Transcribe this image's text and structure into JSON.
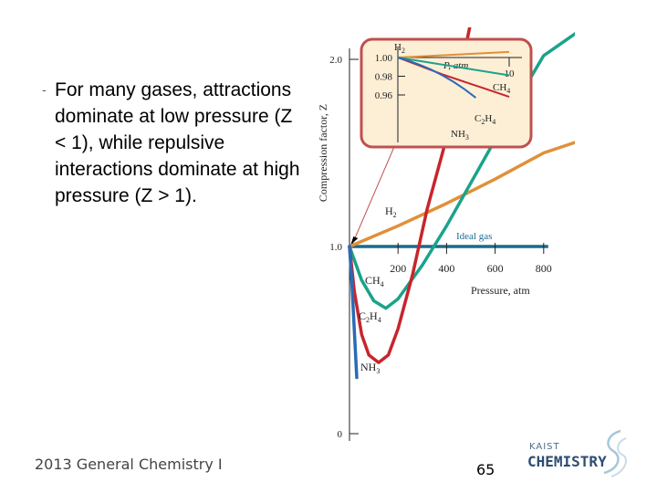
{
  "slide": {
    "bullet": "-",
    "body_text": "For many gases, attractions dominate at low pressure (Z < 1), while repulsive interactions dominate at high pressure  (Z > 1).",
    "footer": "2013 General Chemistry I",
    "page_number": "65",
    "logo": {
      "small_text": "KAIST",
      "big_text": "CHEMISTRY"
    }
  },
  "colors": {
    "H2": "#e0903a",
    "CH4": "#1aa38a",
    "C2H4": "#c8242c",
    "NH3": "#2a6bb5",
    "ideal": "#1a6b8c",
    "inset_border": "#c0504d",
    "inset_fill": "#fcefd6"
  },
  "chart_data": [
    {
      "type": "line",
      "xlabel": "Pressure, atm",
      "ylabel": "Compression factor, Z",
      "xlim": [
        0,
        800
      ],
      "ylim": [
        0,
        2.0
      ],
      "x_ticks": [
        "200",
        "400",
        "600",
        "800"
      ],
      "y_ticks": [
        "0",
        "1.0",
        "2.0"
      ],
      "reference_line": {
        "label": "Ideal gas",
        "y": 1.0
      },
      "series": [
        {
          "name": "H2",
          "label_main": "H",
          "label_sub": "2",
          "x": [
            0,
            200,
            400,
            600,
            800,
            1030
          ],
          "y": [
            1.0,
            1.11,
            1.23,
            1.36,
            1.5,
            1.6
          ]
        },
        {
          "name": "CH4",
          "label_main": "CH",
          "label_sub": "4",
          "x": [
            0,
            50,
            100,
            150,
            200,
            300,
            400,
            500,
            600,
            700,
            800,
            1000
          ],
          "y": [
            1.0,
            0.82,
            0.71,
            0.67,
            0.72,
            0.9,
            1.11,
            1.34,
            1.57,
            1.8,
            2.02,
            2.2
          ]
        },
        {
          "name": "C2H4",
          "label_main": "C",
          "label_sub": "2",
          "label_main2": "H",
          "label_sub2": "4",
          "x": [
            0,
            20,
            50,
            80,
            120,
            160,
            200,
            260,
            320,
            400,
            500
          ],
          "y": [
            1.0,
            0.76,
            0.53,
            0.42,
            0.38,
            0.42,
            0.56,
            0.85,
            1.2,
            1.58,
            2.2
          ]
        },
        {
          "name": "NH3",
          "label_main": "NH",
          "label_sub": "3",
          "x": [
            0,
            10,
            20,
            30
          ],
          "y": [
            1.0,
            0.8,
            0.55,
            0.3
          ]
        }
      ]
    },
    {
      "type": "line",
      "title": "P, atm",
      "xlim": [
        0,
        10
      ],
      "ylim": [
        0.95,
        1.0
      ],
      "x_ticks": [
        "10"
      ],
      "y_ticks": [
        "1.00",
        "0.98",
        "0.96"
      ],
      "series": [
        {
          "name": "H2",
          "x": [
            0,
            10
          ],
          "y": [
            1.0,
            1.006
          ]
        },
        {
          "name": "CH4",
          "x": [
            0,
            10
          ],
          "y": [
            1.0,
            0.981
          ]
        },
        {
          "name": "C2H4",
          "x": [
            0,
            2,
            4,
            6,
            8,
            10
          ],
          "y": [
            1.0,
            0.991,
            0.982,
            0.974,
            0.966,
            0.958
          ]
        },
        {
          "name": "NH3",
          "x": [
            0,
            1,
            2,
            3,
            4,
            5,
            6,
            7
          ],
          "y": [
            1.0,
            0.9965,
            0.992,
            0.987,
            0.981,
            0.974,
            0.966,
            0.957
          ]
        }
      ]
    }
  ]
}
